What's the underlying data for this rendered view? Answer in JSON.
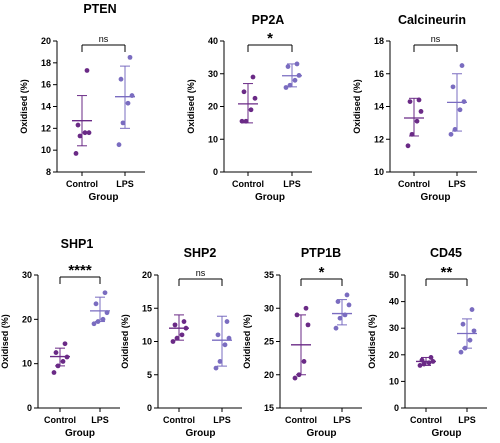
{
  "chart_data": [
    {
      "type": "scatter",
      "title": "PTEN",
      "xlabel": "Group",
      "ylabel": "Oxidised (%)",
      "ylim": [
        8,
        20
      ],
      "yticks": [
        8,
        10,
        12,
        14,
        16,
        18,
        20
      ],
      "categories": [
        "Control",
        "LPS"
      ],
      "series": [
        {
          "values": [
            9.7,
            11.3,
            11.6,
            11.6,
            12.3,
            17.3
          ],
          "mean": 12.7,
          "sd": [
            10.4,
            15.0
          ]
        },
        {
          "values": [
            10.5,
            12.5,
            14.3,
            15.0,
            16.5,
            18.5
          ],
          "mean": 14.9,
          "sd": [
            12.0,
            17.7
          ]
        }
      ],
      "significance": "ns",
      "colors": [
        "#6a2a86",
        "#7a6cc0"
      ]
    },
    {
      "type": "scatter",
      "title": "PP2A",
      "xlabel": "Group",
      "ylabel": "Oxidised (%)",
      "ylim": [
        0,
        40
      ],
      "yticks": [
        0,
        10,
        20,
        30,
        40
      ],
      "categories": [
        "Control",
        "LPS"
      ],
      "series": [
        {
          "values": [
            15.5,
            15.5,
            19.0,
            22.5,
            24.5,
            29.0
          ],
          "mean": 20.8,
          "sd": [
            15.0,
            27.0
          ]
        },
        {
          "values": [
            25.8,
            26.5,
            28.0,
            29.5,
            32.2,
            33.0
          ],
          "mean": 29.4,
          "sd": [
            26.0,
            33.0
          ]
        }
      ],
      "significance": "*",
      "colors": [
        "#6a2a86",
        "#7a6cc0"
      ]
    },
    {
      "type": "scatter",
      "title": "Calcineurin",
      "xlabel": "Group",
      "ylabel": "Oxidised (%)",
      "ylim": [
        10,
        18
      ],
      "yticks": [
        10,
        12,
        14,
        16,
        18
      ],
      "categories": [
        "Control",
        "LPS"
      ],
      "series": [
        {
          "values": [
            11.6,
            12.3,
            13.1,
            13.7,
            14.3,
            14.4
          ],
          "mean": 13.3,
          "sd": [
            12.2,
            14.5
          ]
        },
        {
          "values": [
            12.3,
            12.6,
            13.8,
            14.3,
            15.2,
            16.5
          ],
          "mean": 14.25,
          "sd": [
            12.5,
            16.0
          ]
        }
      ],
      "significance": "ns",
      "colors": [
        "#6a2a86",
        "#7a6cc0"
      ]
    },
    {
      "type": "scatter",
      "title": "SHP1",
      "xlabel": "Group",
      "ylabel": "Oxidised (%)",
      "ylim": [
        0,
        30
      ],
      "yticks": [
        0,
        10,
        20,
        30
      ],
      "categories": [
        "Control",
        "LPS"
      ],
      "series": [
        {
          "values": [
            8.0,
            9.5,
            10.5,
            11.5,
            12.5,
            14.5
          ],
          "mean": 11.6,
          "sd": [
            9.5,
            13.5
          ]
        },
        {
          "values": [
            19.0,
            19.5,
            20.0,
            21.5,
            23.5,
            26.0
          ],
          "mean": 21.9,
          "sd": [
            19.5,
            25.0
          ]
        }
      ],
      "significance": "****",
      "colors": [
        "#6a2a86",
        "#7a6cc0"
      ]
    },
    {
      "type": "scatter",
      "title": "SHP2",
      "xlabel": "Group",
      "ylabel": "Oxidised (%)",
      "ylim": [
        0,
        20
      ],
      "yticks": [
        0,
        5,
        10,
        15,
        20
      ],
      "categories": [
        "Control",
        "LPS"
      ],
      "series": [
        {
          "values": [
            10.0,
            10.5,
            11.0,
            12.0,
            12.5,
            13.0
          ],
          "mean": 12.0,
          "sd": [
            10.2,
            14.0
          ]
        },
        {
          "values": [
            6.0,
            7.0,
            9.5,
            10.5,
            11.0,
            13.0
          ],
          "mean": 10.2,
          "sd": [
            6.3,
            13.8
          ]
        }
      ],
      "significance": "ns",
      "colors": [
        "#6a2a86",
        "#7a6cc0"
      ]
    },
    {
      "type": "scatter",
      "title": "PTP1B",
      "xlabel": "Group",
      "ylabel": "Oxidised (%)",
      "ylim": [
        15,
        35
      ],
      "yticks": [
        15,
        20,
        25,
        30,
        35
      ],
      "categories": [
        "Control",
        "LPS"
      ],
      "series": [
        {
          "values": [
            19.5,
            20.0,
            22.0,
            27.5,
            29.0,
            30.0
          ],
          "mean": 24.5,
          "sd": [
            20.0,
            29.0
          ]
        },
        {
          "values": [
            27.0,
            28.5,
            29.0,
            30.5,
            31.0,
            32.0
          ],
          "mean": 29.2,
          "sd": [
            27.5,
            31.3
          ]
        }
      ],
      "significance": "*",
      "colors": [
        "#6a2a86",
        "#7a6cc0"
      ]
    },
    {
      "type": "scatter",
      "title": "CD45",
      "xlabel": "Group",
      "ylabel": "Oxidised (%)",
      "ylim": [
        0,
        50
      ],
      "yticks": [
        0,
        10,
        20,
        30,
        40,
        50
      ],
      "categories": [
        "Control",
        "LPS"
      ],
      "series": [
        {
          "values": [
            16.0,
            16.5,
            17.0,
            17.5,
            18.0,
            19.0
          ],
          "mean": 17.5,
          "sd": [
            16.0,
            19.0
          ]
        },
        {
          "values": [
            21.0,
            22.5,
            25.5,
            29.0,
            31.5,
            37.0
          ],
          "mean": 28.0,
          "sd": [
            22.5,
            33.5
          ]
        }
      ],
      "significance": "**",
      "colors": [
        "#6a2a86",
        "#7a6cc0"
      ]
    }
  ]
}
